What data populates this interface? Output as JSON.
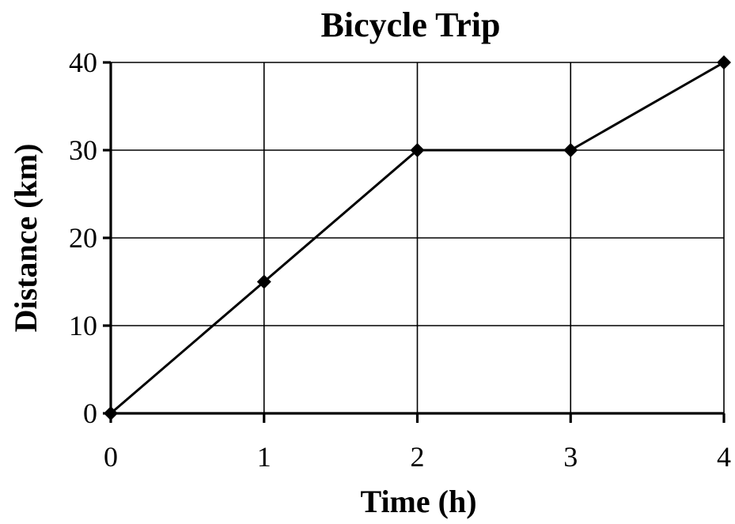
{
  "chart_data": {
    "type": "line",
    "title": "Bicycle Trip",
    "xlabel": "Time (h)",
    "ylabel": "Distance (km)",
    "x": [
      0,
      1,
      2,
      3,
      4
    ],
    "series": [
      {
        "values": [
          0,
          15,
          30,
          30,
          40
        ]
      }
    ],
    "x_ticks": [
      "0",
      "1",
      "2",
      "3",
      "4"
    ],
    "y_ticks": [
      "0",
      "10",
      "20",
      "30",
      "40"
    ],
    "xlim": [
      0,
      4
    ],
    "ylim": [
      0,
      40
    ],
    "grid": true,
    "marker": "diamond",
    "colors": {
      "line": "#000000",
      "grid": "#000000",
      "background": "#ffffff"
    }
  }
}
